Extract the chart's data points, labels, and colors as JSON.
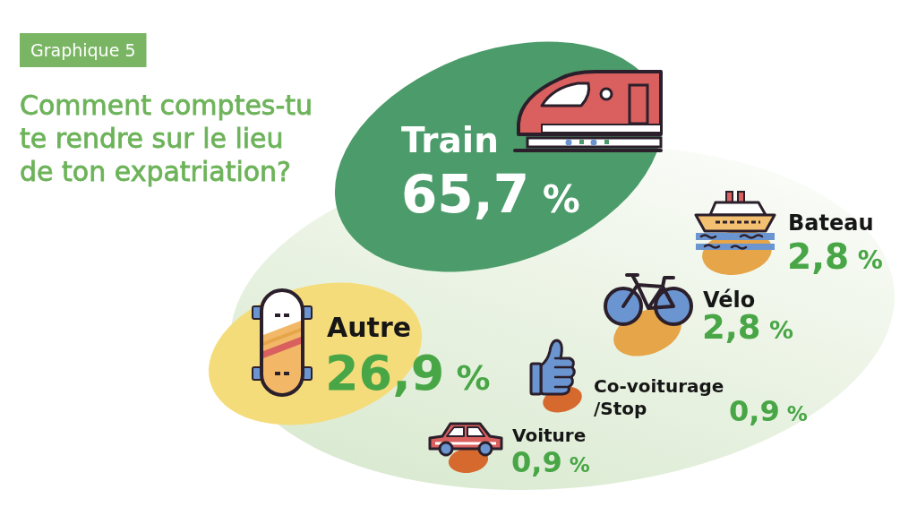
{
  "chart_data": {
    "type": "other",
    "title": "Comment comptes-tu te rendre sur le lieu de ton expatriation?",
    "annotations": [
      "Graphique 5"
    ],
    "categories": [
      "Train",
      "Autre",
      "Bateau",
      "Vélo",
      "Co-voiturage /Stop",
      "Voiture"
    ],
    "values": [
      65.7,
      26.9,
      2.8,
      2.8,
      0.9,
      0.9
    ],
    "value_labels": [
      "65,7 %",
      "26,9 %",
      "2,8 %",
      "2,8 %",
      "0,9 %",
      "0,9 %"
    ],
    "colors": [
      "#4c9b6a",
      "#f5dc7a",
      "#e5a548",
      "#e5a548",
      "#d6692e",
      "#d6692e"
    ]
  }
}
